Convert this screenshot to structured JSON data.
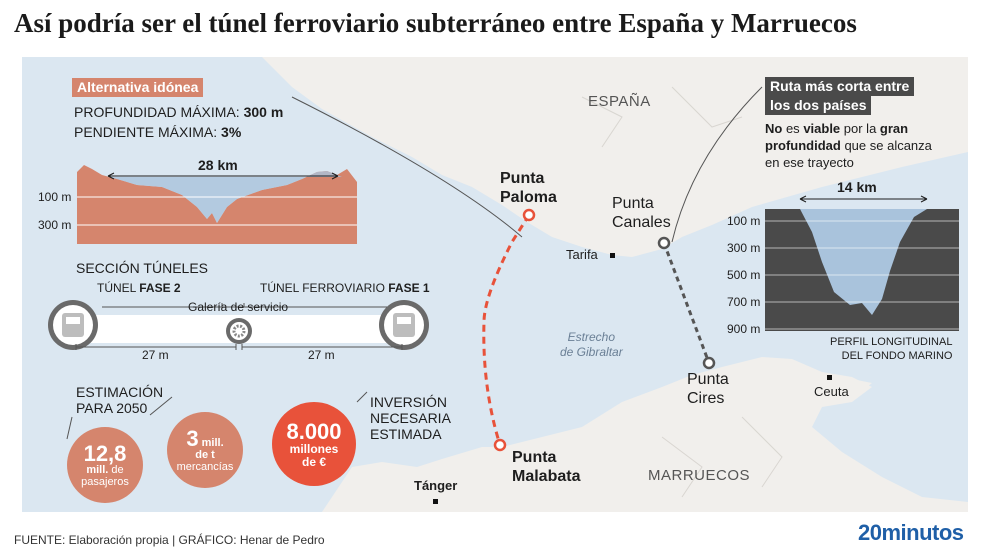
{
  "title": "Así podría ser el túnel ferroviario subterráneo entre España y Marruecos",
  "left_panel": {
    "tag": "Alternativa idónea",
    "depth_label": "PROFUNDIDAD MÁXIMA: ",
    "depth_value": "300 m",
    "slope_label": "PENDIENTE MÁXIMA: ",
    "slope_value": "3%",
    "distance": "28 km",
    "y_ticks": [
      "100 m",
      "300 m"
    ]
  },
  "tunnels": {
    "section_title": "SECCIÓN TÚNELES",
    "tunnel2_label": "TÚNEL ",
    "tunnel2_bold": "FASE 2",
    "tunnel1_label": "TÚNEL FERROVIARIO ",
    "tunnel1_bold": "FASE 1",
    "gallery": "Galería de servicio",
    "dist_left": "27 m",
    "dist_right": "27 m"
  },
  "estimate": {
    "label_line1": "ESTIMACIÓN",
    "label_line2": "PARA 2050",
    "passengers_value": "12,8",
    "passengers_unit_bold": "mill.",
    "passengers_unit_rest": " de",
    "passengers_line3": "pasajeros",
    "freight_value": "3",
    "freight_unit": " mill.",
    "freight_line2": "de t",
    "freight_line3": "mercancías"
  },
  "investment": {
    "label_line1": "INVERSIÓN",
    "label_line2": "NECESARIA",
    "label_line3": "ESTIMADA",
    "value": "8.000",
    "unit_line1": "millones",
    "unit_line2": "de €"
  },
  "right_panel": {
    "tag_line1": "Ruta más corta entre",
    "tag_line2": "los dos países",
    "note_no": "No",
    "note_part2": " es ",
    "note_viable": "viable",
    "note_part3": " por la ",
    "note_gran": "gran",
    "note_profundidad": "profundidad",
    "note_part4": " que se alcanza",
    "note_line3": "en ese trayecto",
    "distance": "14 km",
    "y_ticks": [
      "100 m",
      "300 m",
      "500 m",
      "700 m",
      "900 m"
    ],
    "caption_line1": "PERFIL LONGITUDINAL",
    "caption_line2": "DEL FONDO MARINO"
  },
  "map_labels": {
    "spain": "ESPAÑA",
    "morocco": "MARRUECOS",
    "strait_line1": "Estrecho",
    "strait_line2": "de Gibraltar",
    "punta_paloma_1": "Punta",
    "punta_paloma_2": "Paloma",
    "punta_canales_1": "Punta",
    "punta_canales_2": "Canales",
    "punta_cires_1": "Punta",
    "punta_cires_2": "Cires",
    "punta_malabata_1": "Punta",
    "punta_malabata_2": "Malabata",
    "tarifa": "Tarifa",
    "tanger": "Tánger",
    "ceuta": "Ceuta"
  },
  "colors": {
    "accent": "#d5856d",
    "route": "#e8523a",
    "investment_circle": "#e8523a",
    "right_tag": "#4a4a4a",
    "land": "#f1efec",
    "sea": "#dbe7f1",
    "profile_fill": "#d5856d"
  },
  "footer": {
    "source": "FUENTE: Elaboración propia  |  GRÁFICO: Henar de Pedro",
    "logo": "20minutos"
  }
}
